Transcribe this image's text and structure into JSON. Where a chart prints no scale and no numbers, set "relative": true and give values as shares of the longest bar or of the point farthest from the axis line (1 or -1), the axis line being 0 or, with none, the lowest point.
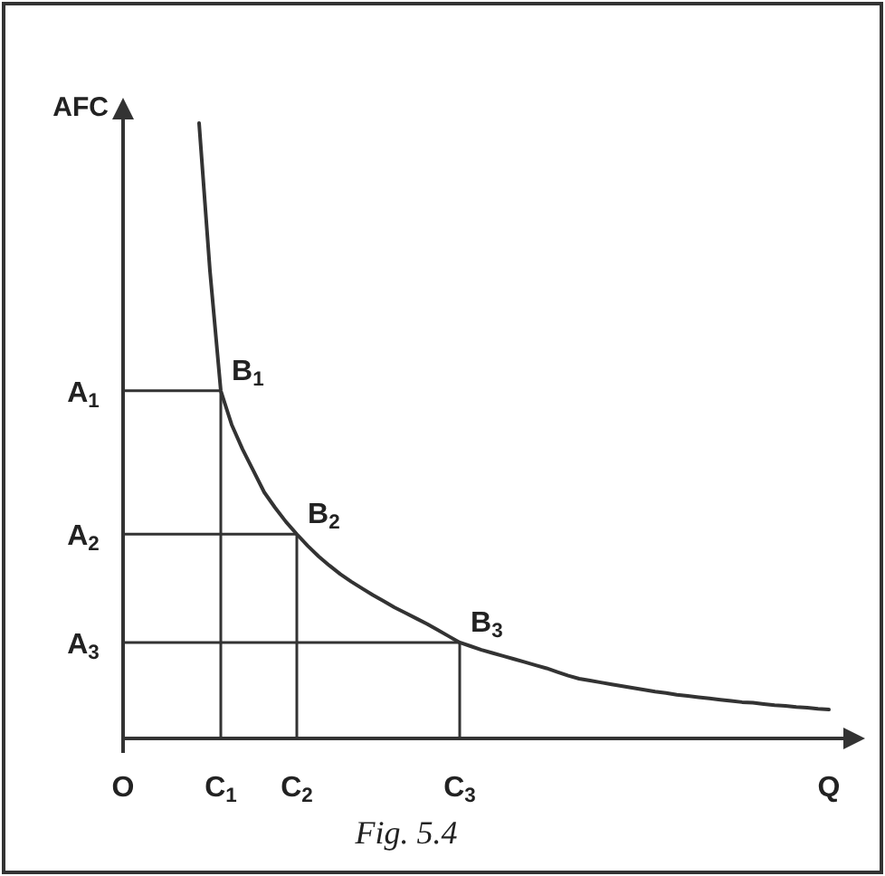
{
  "chart_data": {
    "type": "line",
    "relative": true,
    "xlabel": "Q",
    "ylabel": "AFC",
    "categories": [
      "O",
      null,
      null,
      null,
      null,
      null,
      null,
      null,
      null,
      "C$_{1}$",
      null,
      null,
      null,
      null,
      null,
      null,
      "C$_{2}$",
      null,
      null,
      null,
      null,
      null,
      null,
      null,
      null,
      null,
      null,
      null,
      null,
      null,
      null,
      "C$_{3}$",
      null,
      null,
      null,
      null,
      null,
      null,
      null,
      null,
      null,
      null,
      null,
      null,
      null,
      null,
      null,
      null,
      null,
      null,
      null,
      null,
      null,
      null,
      null,
      null,
      null,
      null,
      null,
      null,
      null,
      null,
      null,
      null,
      null,
      null
    ],
    "series": [
      {
        "color": "#333333",
        "values": [
          null,
          null,
          null,
          null,
          null,
          null,
          null,
          1.0,
          0.76,
          0.565,
          0.51,
          0.47,
          0.435,
          0.4,
          0.375,
          0.352,
          0.332,
          0.313,
          0.296,
          0.281,
          0.267,
          0.255,
          0.244,
          0.233,
          0.223,
          0.213,
          0.204,
          0.195,
          0.186,
          0.176,
          0.166,
          0.156,
          0.15,
          0.144,
          0.139,
          0.134,
          0.129,
          0.124,
          0.119,
          0.114,
          0.108,
          0.102,
          0.097,
          0.094,
          0.091,
          0.088,
          0.085,
          0.082,
          0.079,
          0.076,
          0.074,
          0.071,
          0.069,
          0.067,
          0.065,
          0.063,
          0.061,
          0.059,
          0.058,
          0.056,
          0.054,
          0.053,
          0.051,
          0.05,
          0.048,
          0.047
        ]
      }
    ],
    "annotations": [
      {
        "text": "B$_{1}$",
        "x": "C$_{1}$",
        "y": 0.565
      },
      {
        "text": "B$_{2}$",
        "x": "C$_{2}$",
        "y": 0.332
      },
      {
        "text": "B$_{3}$",
        "x": "C$_{3}$",
        "y": 0.156
      },
      "A$_{1}$",
      "A$_{2}$",
      "A$_{3}$",
      "Fig. 5.4"
    ],
    "grid": false,
    "marker": "none",
    "line_style": "solid"
  }
}
